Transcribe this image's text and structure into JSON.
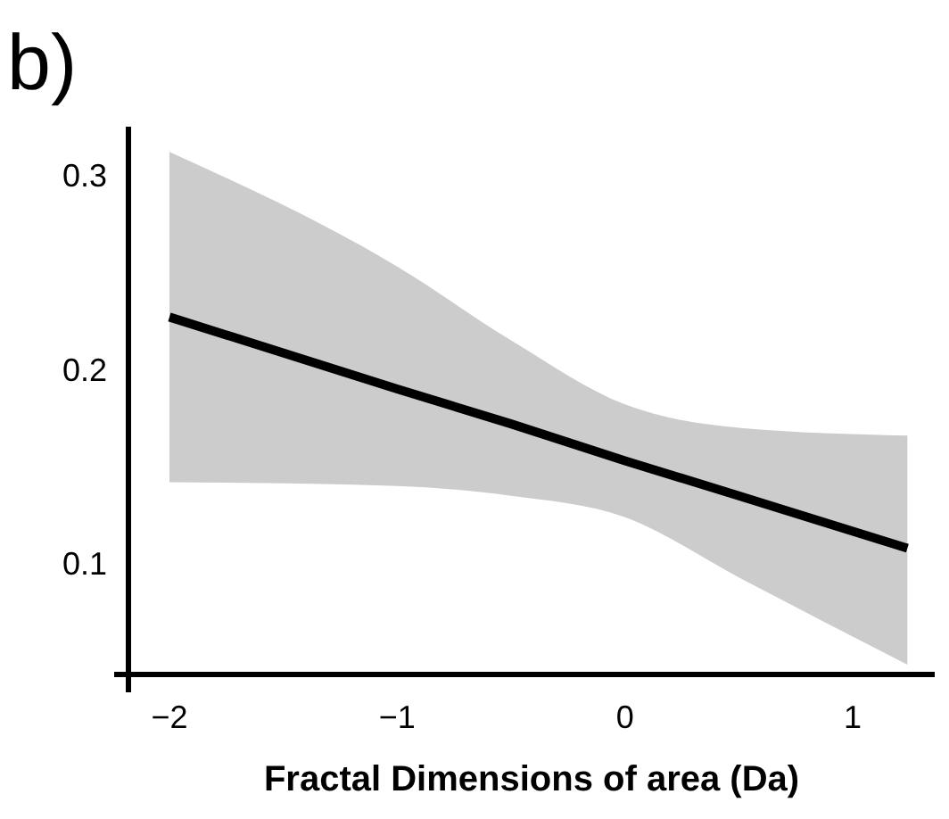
{
  "chart_data": {
    "type": "line",
    "title": "b)",
    "xlabel": "Fractal Dimensions of area (Da)",
    "x": [
      -2,
      -1,
      -0.5,
      0,
      0.5,
      1.24
    ],
    "series": [
      {
        "color": "#000000",
        "values": [
          0.227,
          0.19,
          0.172,
          0.153,
          0.135,
          0.108
        ],
        "lower": [
          0.142,
          0.14,
          0.135,
          0.124,
          0.093,
          0.048
        ],
        "upper": [
          0.312,
          0.253,
          0.215,
          0.182,
          0.17,
          0.166
        ]
      }
    ],
    "xlim": [
      -2.18,
      1.36
    ],
    "ylim": [
      0.043,
      0.325
    ],
    "xticks": [
      {
        "value": -2,
        "label": "−2"
      },
      {
        "value": -1,
        "label": "−1"
      },
      0,
      1
    ],
    "yticks": [
      0.1,
      0.2,
      0.3
    ],
    "marker": "none",
    "line_style": "solid"
  }
}
